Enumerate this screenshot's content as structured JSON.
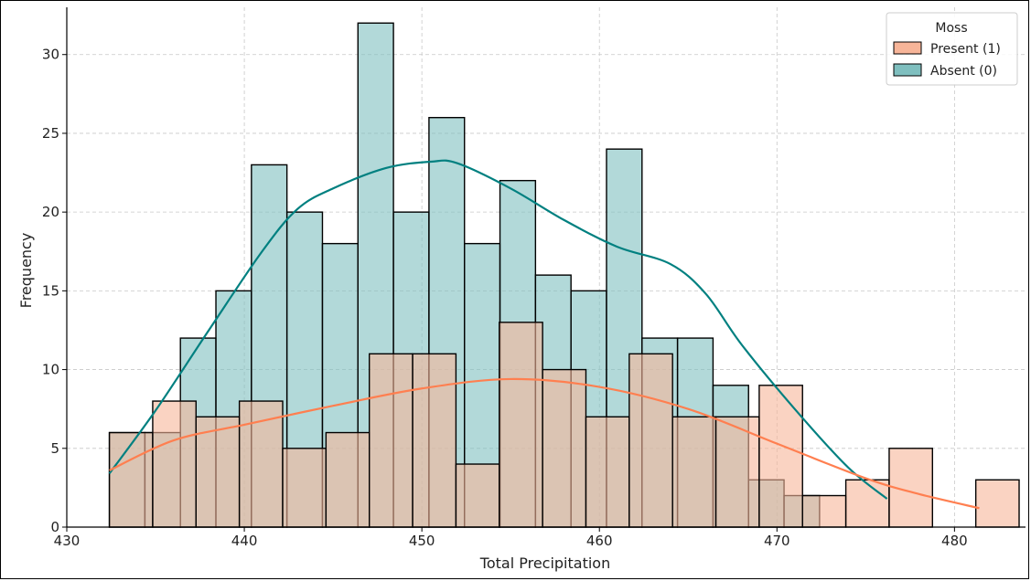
{
  "chart_data": {
    "type": "histogram",
    "xlabel": "Total Precipitation",
    "ylabel": "Frequency",
    "xlim": [
      430,
      484
    ],
    "ylim": [
      0,
      33
    ],
    "x_ticks": [
      430,
      440,
      450,
      460,
      470,
      480
    ],
    "y_ticks": [
      0,
      5,
      10,
      15,
      20,
      25,
      30
    ],
    "grid": true,
    "legend": {
      "title": "Moss",
      "position": "top-right",
      "entries": [
        "Present (1)",
        "Absent (0)"
      ]
    },
    "series": [
      {
        "name": "Absent (0)",
        "color": "#008080",
        "fill": "#7fbfbf",
        "bin_start": 432.4,
        "bin_width": 2.0,
        "values": [
          6,
          6,
          12,
          15,
          23,
          20,
          18,
          32,
          20,
          26,
          18,
          22,
          16,
          15,
          24,
          12,
          12,
          9,
          3,
          2
        ],
        "kde": [
          [
            432.4,
            3.4
          ],
          [
            435,
            7.4
          ],
          [
            438,
            12.5
          ],
          [
            441,
            17.5
          ],
          [
            443,
            20.2
          ],
          [
            445,
            21.5
          ],
          [
            448,
            22.8
          ],
          [
            450.5,
            23.2
          ],
          [
            452,
            23.1
          ],
          [
            455,
            21.5
          ],
          [
            458,
            19.5
          ],
          [
            461,
            17.8
          ],
          [
            464,
            16.7
          ],
          [
            466,
            14.8
          ],
          [
            468,
            11.6
          ],
          [
            471,
            7.5
          ],
          [
            474,
            3.8
          ],
          [
            476.2,
            1.8
          ]
        ]
      },
      {
        "name": "Present (1)",
        "color": "#ff7f50",
        "fill": "#f7b599",
        "bin_start": 432.4,
        "bin_width": 2.44,
        "values": [
          6,
          8,
          7,
          8,
          5,
          6,
          11,
          11,
          4,
          13,
          10,
          7,
          11,
          7,
          7,
          9,
          2,
          3,
          5,
          0,
          3
        ],
        "kde": [
          [
            432.4,
            3.6
          ],
          [
            436,
            5.5
          ],
          [
            440,
            6.5
          ],
          [
            445,
            7.7
          ],
          [
            450,
            8.8
          ],
          [
            455,
            9.4
          ],
          [
            460,
            8.9
          ],
          [
            465,
            7.5
          ],
          [
            470,
            5.3
          ],
          [
            475,
            3.1
          ],
          [
            478,
            2.1
          ],
          [
            481.4,
            1.2
          ]
        ]
      }
    ]
  }
}
